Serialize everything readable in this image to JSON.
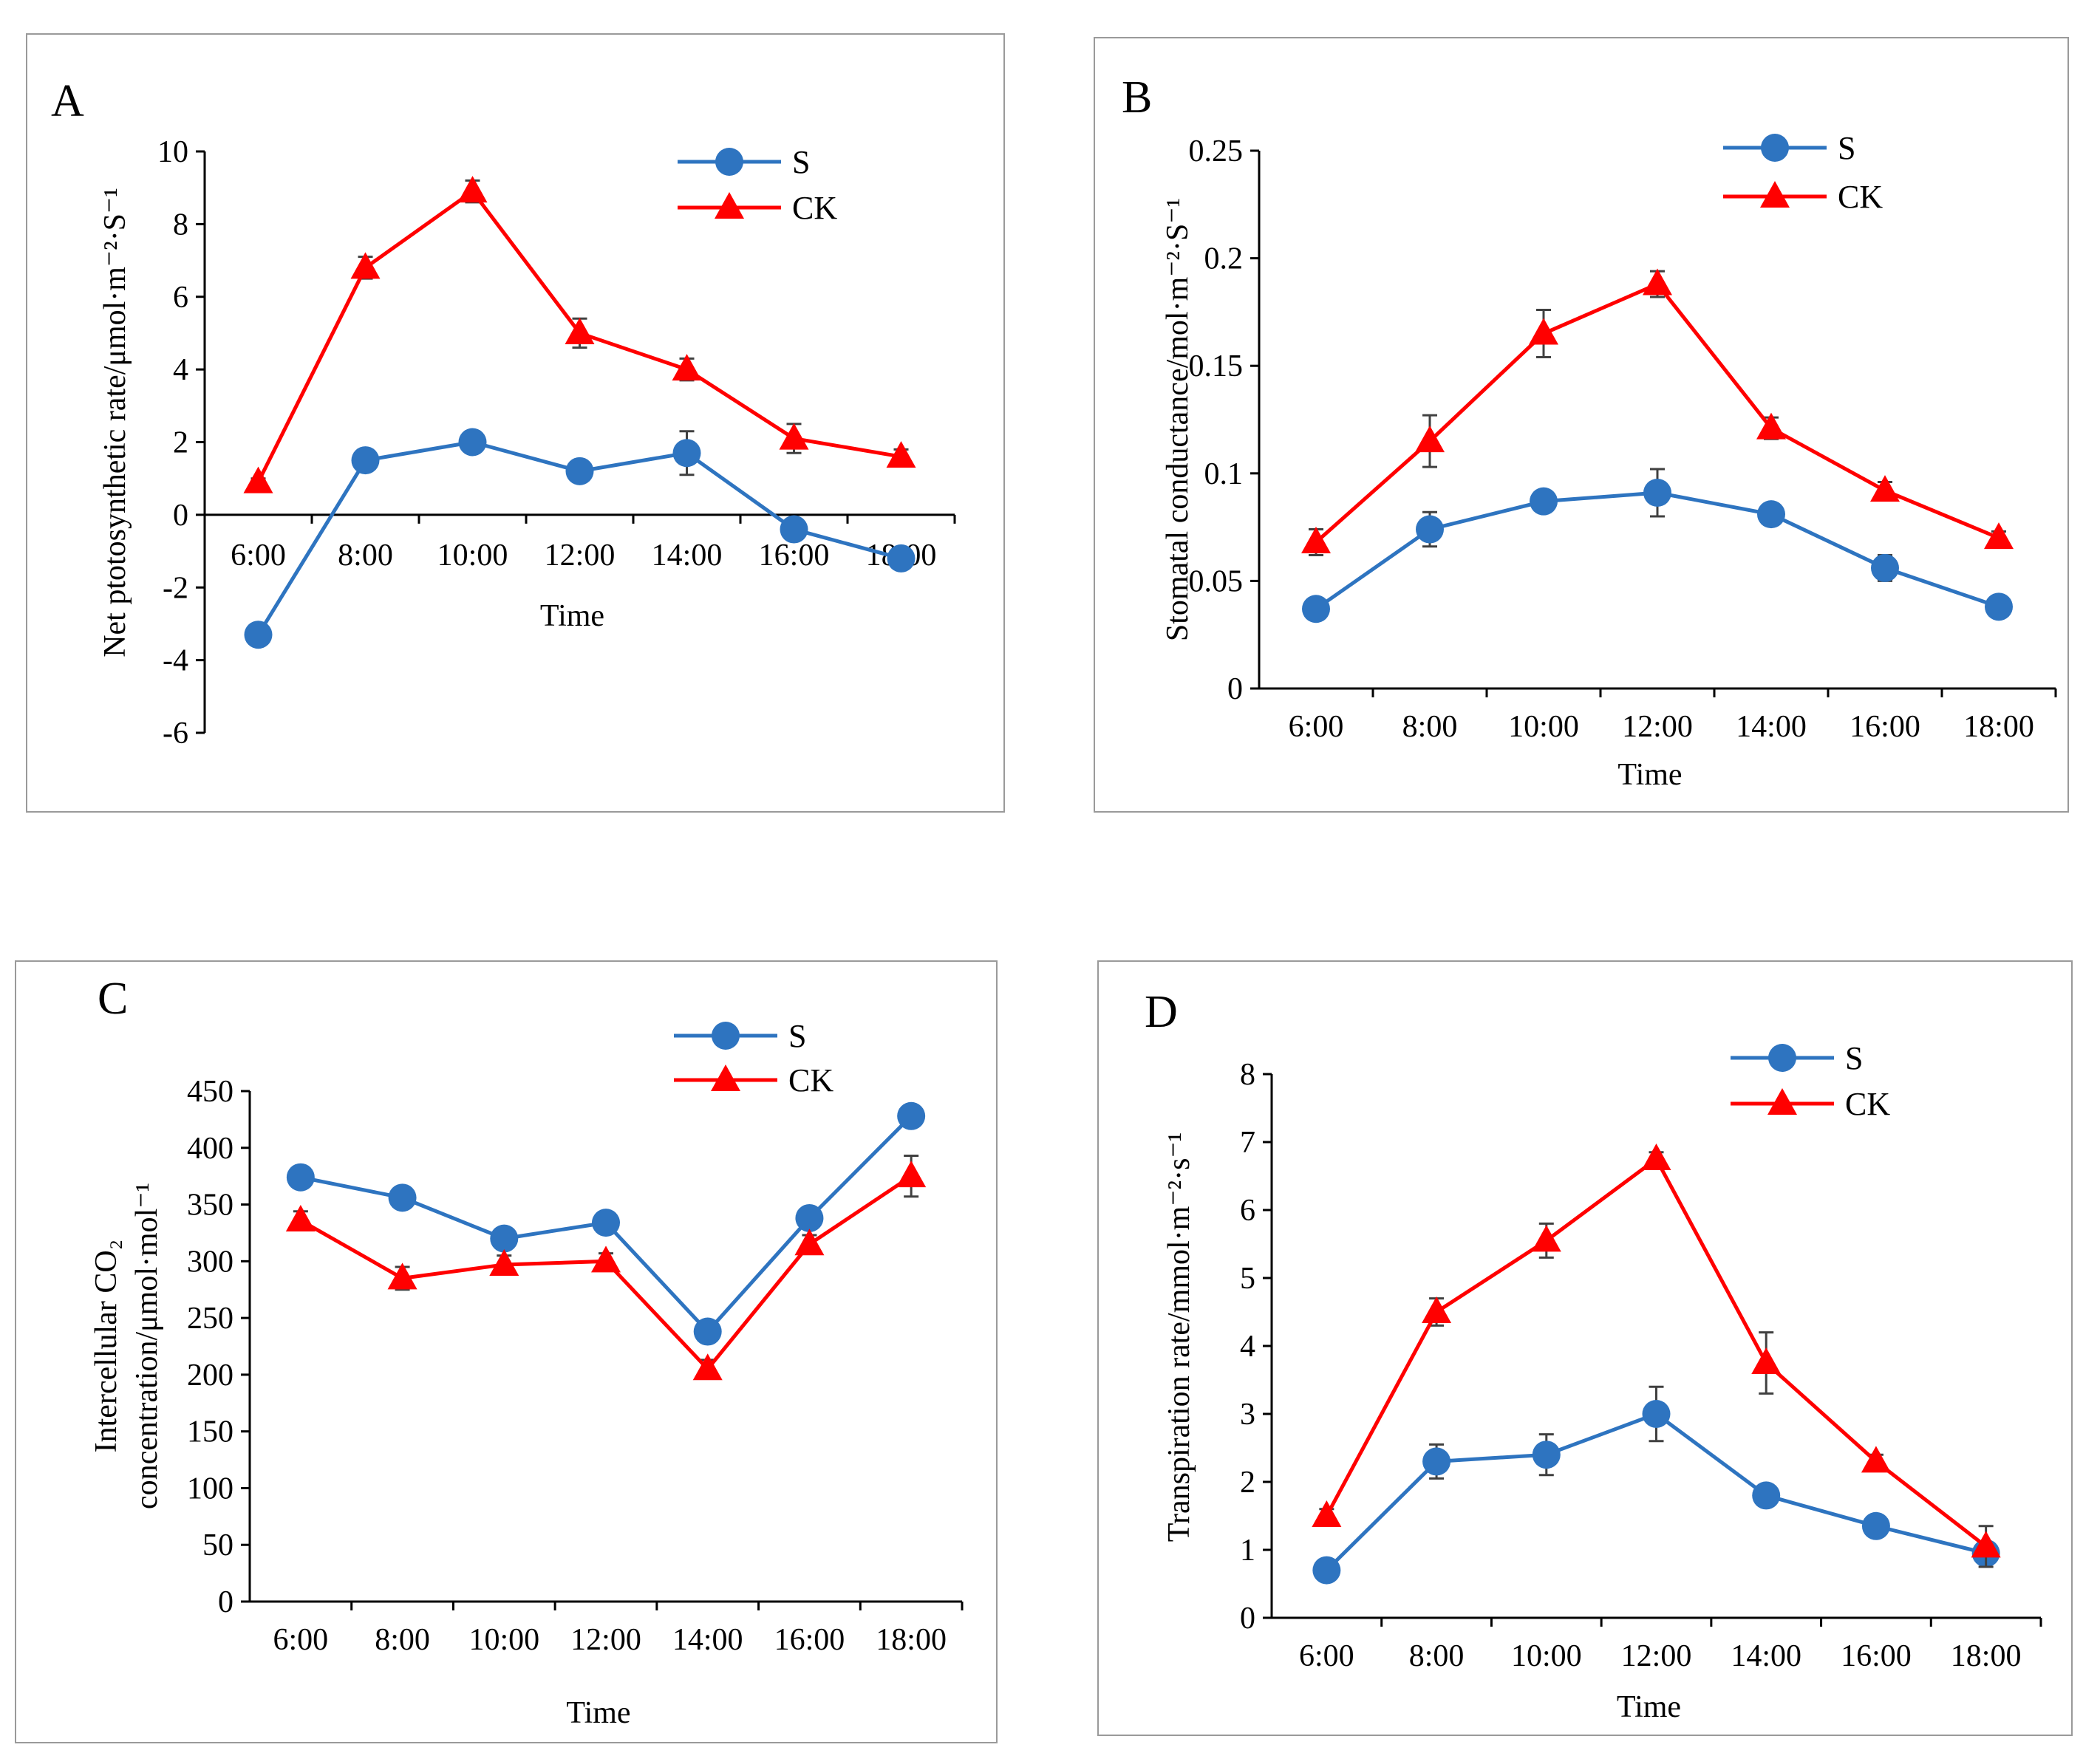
{
  "colors": {
    "S": "#2e74c0",
    "CK": "#ff0000",
    "axis": "#000000",
    "errorbar": "#404040",
    "frame": "#9a9a9a"
  },
  "chart_data": [
    {
      "id": "A",
      "panel_label": "A",
      "type": "line",
      "categories": [
        "6:00",
        "8:00",
        "10:00",
        "12:00",
        "14:00",
        "16:00",
        "18:00"
      ],
      "xlabel": "Time",
      "ylabel": [
        "Net ptotosynthetic rate/μmol·m⁻²·S⁻¹"
      ],
      "ylim": [
        -6,
        10
      ],
      "yticks": [
        -6,
        -4,
        -2,
        0,
        2,
        4,
        6,
        8,
        10
      ],
      "ytick_labels": [
        "-6",
        "-4",
        "-2",
        "0",
        "2",
        "4",
        "6",
        "8",
        "10"
      ],
      "legend": [
        "S",
        "CK"
      ],
      "series": [
        {
          "name": "S",
          "marker": "circle",
          "values": [
            -3.3,
            1.5,
            2.0,
            1.2,
            1.7,
            -0.4,
            -1.2
          ],
          "errors": [
            0.2,
            0.15,
            0.3,
            0.3,
            0.6,
            0.15,
            0.1
          ]
        },
        {
          "name": "CK",
          "marker": "triangle",
          "values": [
            0.9,
            6.8,
            8.9,
            5.0,
            4.0,
            2.1,
            1.6
          ],
          "errors": [
            0.1,
            0.3,
            0.3,
            0.4,
            0.3,
            0.4,
            0.2
          ]
        }
      ]
    },
    {
      "id": "B",
      "panel_label": "B",
      "type": "line",
      "categories": [
        "6:00",
        "8:00",
        "10:00",
        "12:00",
        "14:00",
        "16:00",
        "18:00"
      ],
      "xlabel": "Time",
      "ylabel": [
        "Stomatal conductance/mol·m⁻²·S⁻¹"
      ],
      "ylim": [
        0,
        0.25
      ],
      "yticks": [
        0,
        0.05,
        0.1,
        0.15,
        0.2,
        0.25
      ],
      "ytick_labels": [
        "0",
        "0.05",
        "0.1",
        "0.15",
        "0.2",
        "0.25"
      ],
      "legend": [
        "S",
        "CK"
      ],
      "series": [
        {
          "name": "S",
          "marker": "circle",
          "values": [
            0.037,
            0.074,
            0.087,
            0.091,
            0.081,
            0.056,
            0.038
          ],
          "errors": [
            0.003,
            0.008,
            0.002,
            0.011,
            0.005,
            0.006,
            0.002
          ]
        },
        {
          "name": "CK",
          "marker": "triangle",
          "values": [
            0.068,
            0.115,
            0.165,
            0.188,
            0.121,
            0.092,
            0.07
          ],
          "errors": [
            0.006,
            0.012,
            0.011,
            0.006,
            0.005,
            0.004,
            0.003
          ]
        }
      ]
    },
    {
      "id": "C",
      "panel_label": "C",
      "type": "line",
      "categories": [
        "6:00",
        "8:00",
        "10:00",
        "12:00",
        "14:00",
        "16:00",
        "18:00"
      ],
      "xlabel": "Time",
      "ylabel": [
        "Intercellular CO₂",
        "concentration/μmol·mol⁻¹"
      ],
      "ylim": [
        0,
        450
      ],
      "yticks": [
        0,
        50,
        100,
        150,
        200,
        250,
        300,
        350,
        400,
        450
      ],
      "ytick_labels": [
        "0",
        "50",
        "100",
        "150",
        "200",
        "250",
        "300",
        "350",
        "400",
        "450"
      ],
      "legend": [
        "S",
        "CK"
      ],
      "series": [
        {
          "name": "S",
          "marker": "circle",
          "values": [
            374,
            356,
            320,
            334,
            238,
            338,
            428
          ],
          "errors": [
            6,
            5,
            6,
            5,
            8,
            8,
            6
          ]
        },
        {
          "name": "CK",
          "marker": "triangle",
          "values": [
            336,
            285,
            297,
            300,
            205,
            315,
            375
          ],
          "errors": [
            8,
            10,
            8,
            7,
            8,
            8,
            18
          ]
        }
      ]
    },
    {
      "id": "D",
      "panel_label": "D",
      "type": "line",
      "categories": [
        "6:00",
        "8:00",
        "10:00",
        "12:00",
        "14:00",
        "16:00",
        "18:00"
      ],
      "xlabel": "Time",
      "ylabel": [
        "Transpiration rate/mmol·m⁻²·s⁻¹"
      ],
      "ylim": [
        0,
        8
      ],
      "yticks": [
        0,
        1,
        2,
        3,
        4,
        5,
        6,
        7,
        8
      ],
      "ytick_labels": [
        "0",
        "1",
        "2",
        "3",
        "4",
        "5",
        "6",
        "7",
        "8"
      ],
      "legend": [
        "S",
        "CK"
      ],
      "series": [
        {
          "name": "S",
          "marker": "circle",
          "values": [
            0.7,
            2.3,
            2.4,
            3.0,
            1.8,
            1.35,
            0.95
          ],
          "errors": [
            0.1,
            0.25,
            0.3,
            0.4,
            0.1,
            0.1,
            0.15
          ]
        },
        {
          "name": "CK",
          "marker": "triangle",
          "values": [
            1.5,
            4.5,
            5.55,
            6.75,
            3.75,
            2.3,
            1.05
          ],
          "errors": [
            0.1,
            0.2,
            0.25,
            0.1,
            0.45,
            0.1,
            0.3
          ]
        }
      ]
    }
  ]
}
